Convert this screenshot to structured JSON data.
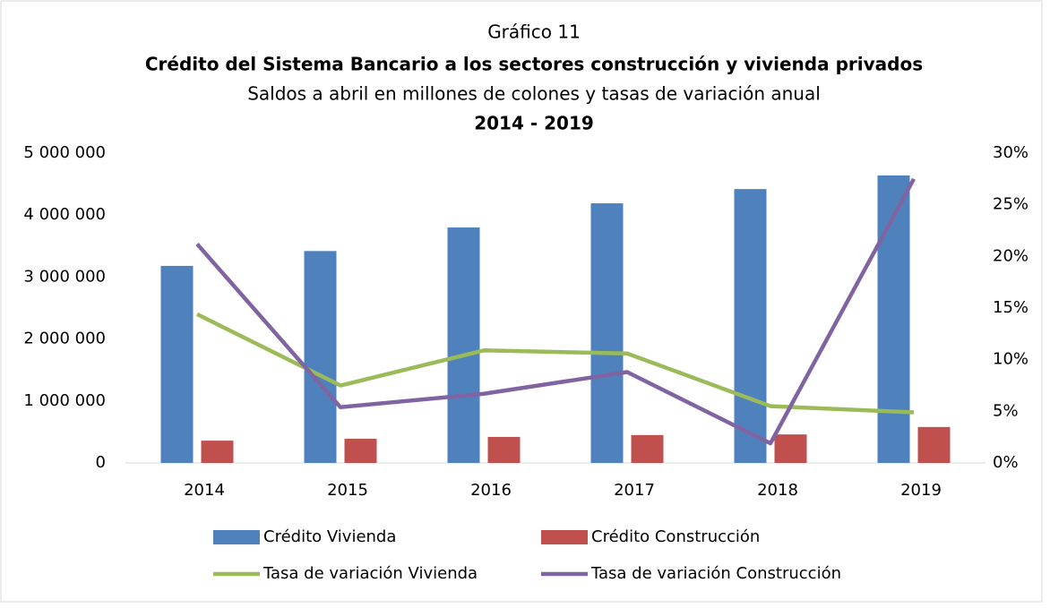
{
  "chart_data": {
    "type": "bar",
    "title": "Gráfico 11",
    "subtitle": "Crédito del Sistema Bancario a los sectores construcción y vivienda privados",
    "description": "Saldos a abril en millones de colones y tasas de variación anual",
    "period": "2014 - 2019",
    "categories": [
      "2014",
      "2015",
      "2016",
      "2017",
      "2018",
      "2019"
    ],
    "series": [
      {
        "name": "Crédito Vivienda",
        "type": "bar",
        "color": "#4f81bd",
        "values": [
          3180000,
          3420000,
          3800000,
          4190000,
          4420000,
          4640000
        ]
      },
      {
        "name": "Crédito Construcción",
        "type": "bar",
        "color": "#c0504d",
        "values": [
          360000,
          390000,
          420000,
          450000,
          460000,
          580000
        ]
      },
      {
        "name": "Tasa de variación Vivienda",
        "type": "line",
        "axis": "y2",
        "color": "#9bbb59",
        "values": [
          14.4,
          7.5,
          10.9,
          10.6,
          5.5,
          4.9
        ]
      },
      {
        "name": "Tasa de variación Construcción",
        "type": "line",
        "axis": "y2",
        "color": "#8064a2",
        "values": [
          21.2,
          5.4,
          6.7,
          8.8,
          1.9,
          27.5
        ]
      }
    ],
    "ylim": [
      0,
      5000000
    ],
    "yticks": [
      0,
      {
        "value": 1000000,
        "label": "1 000 000"
      },
      {
        "value": 2000000,
        "label": "2 000 000"
      },
      {
        "value": 3000000,
        "label": "3 000 000"
      },
      {
        "value": 4000000,
        "label": "4 000 000"
      },
      {
        "value": 5000000,
        "label": "5 000 000"
      }
    ],
    "y2lim": [
      0,
      30
    ],
    "y2ticks": [
      {
        "value": 0,
        "label": "0%"
      },
      {
        "value": 5,
        "label": "5%"
      },
      {
        "value": 10,
        "label": "10%"
      },
      {
        "value": 15,
        "label": "15%"
      },
      {
        "value": 20,
        "label": "20%"
      },
      {
        "value": 25,
        "label": "25%"
      },
      {
        "value": 30,
        "label": "30%"
      }
    ],
    "grid": false
  }
}
